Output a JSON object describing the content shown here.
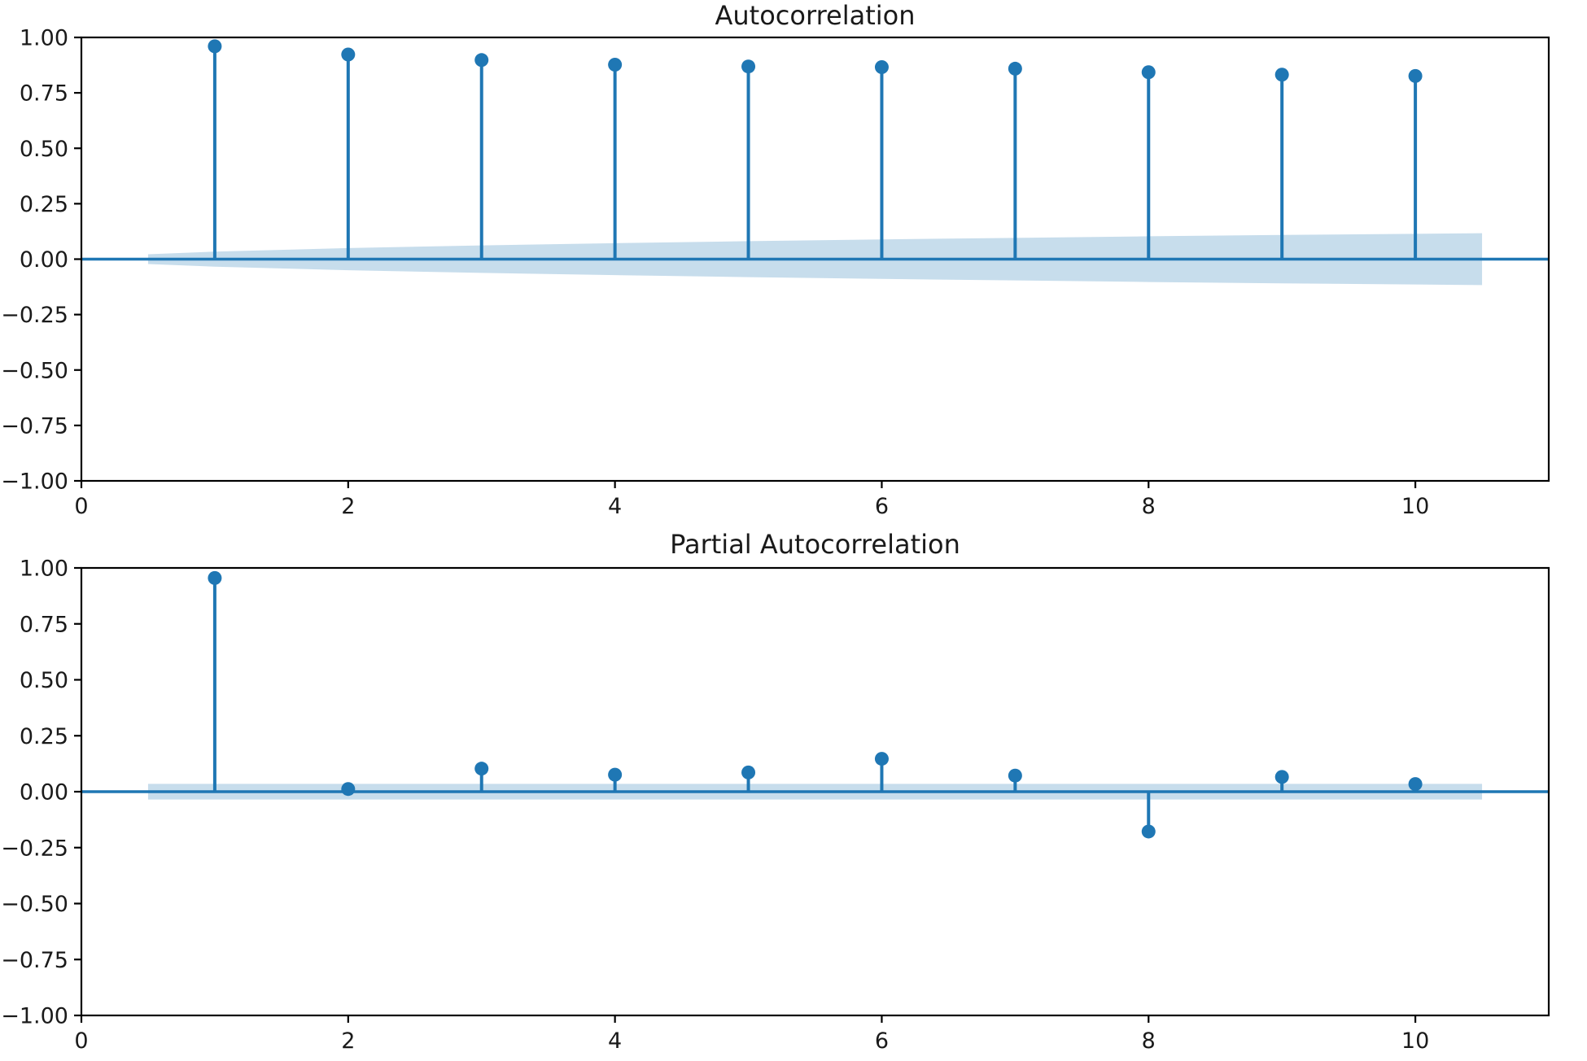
{
  "figure": {
    "background": "#ffffff",
    "accent_color": "#1f77b4",
    "band_opacity": 0.25,
    "spine_color": "#000000",
    "text_color": "#1a1a1a"
  },
  "chart_data": [
    {
      "type": "stem",
      "title": "Autocorrelation",
      "xlabel": "",
      "ylabel": "",
      "xlim": [
        0,
        11
      ],
      "ylim": [
        -1.0,
        1.0
      ],
      "grid": false,
      "legend": null,
      "xticks": [
        0,
        2,
        4,
        6,
        8,
        10
      ],
      "xtick_labels": [
        "0",
        "2",
        "4",
        "6",
        "8",
        "10"
      ],
      "yticks": [
        1.0,
        0.75,
        0.5,
        0.25,
        0.0,
        -0.25,
        -0.5,
        -0.75,
        -1.0
      ],
      "ytick_labels": [
        "1.00",
        "0.75",
        "0.50",
        "0.25",
        "0.00",
        "−0.25",
        "−0.50",
        "−0.75",
        "−1.00"
      ],
      "x": [
        1,
        2,
        3,
        4,
        5,
        6,
        7,
        8,
        9,
        10
      ],
      "values": [
        0.96,
        0.923,
        0.898,
        0.877,
        0.869,
        0.866,
        0.859,
        0.843,
        0.832,
        0.826
      ],
      "confidence_band": {
        "x": [
          0.5,
          1,
          2,
          3,
          4,
          5,
          6,
          7,
          8,
          9,
          10,
          10.5
        ],
        "upper": [
          0.022,
          0.034,
          0.05,
          0.062,
          0.072,
          0.081,
          0.089,
          0.096,
          0.103,
          0.109,
          0.114,
          0.117
        ],
        "lower": [
          -0.022,
          -0.034,
          -0.05,
          -0.062,
          -0.072,
          -0.081,
          -0.089,
          -0.096,
          -0.103,
          -0.109,
          -0.114,
          -0.117
        ]
      }
    },
    {
      "type": "stem",
      "title": "Partial Autocorrelation",
      "xlabel": "",
      "ylabel": "",
      "xlim": [
        0,
        11
      ],
      "ylim": [
        -1.0,
        1.0
      ],
      "grid": false,
      "legend": null,
      "xticks": [
        0,
        2,
        4,
        6,
        8,
        10
      ],
      "xtick_labels": [
        "0",
        "2",
        "4",
        "6",
        "8",
        "10"
      ],
      "yticks": [
        1.0,
        0.75,
        0.5,
        0.25,
        0.0,
        -0.25,
        -0.5,
        -0.75,
        -1.0
      ],
      "ytick_labels": [
        "1.00",
        "0.75",
        "0.50",
        "0.25",
        "0.00",
        "−0.25",
        "−0.50",
        "−0.75",
        "−1.00"
      ],
      "x": [
        1,
        2,
        3,
        4,
        5,
        6,
        7,
        8,
        9,
        10
      ],
      "values": [
        0.955,
        0.012,
        0.103,
        0.076,
        0.086,
        0.147,
        0.072,
        -0.178,
        0.066,
        0.034
      ],
      "confidence_band": {
        "x": [
          0.5,
          10.5
        ],
        "upper": [
          0.035,
          0.035
        ],
        "lower": [
          -0.035,
          -0.035
        ]
      }
    }
  ]
}
